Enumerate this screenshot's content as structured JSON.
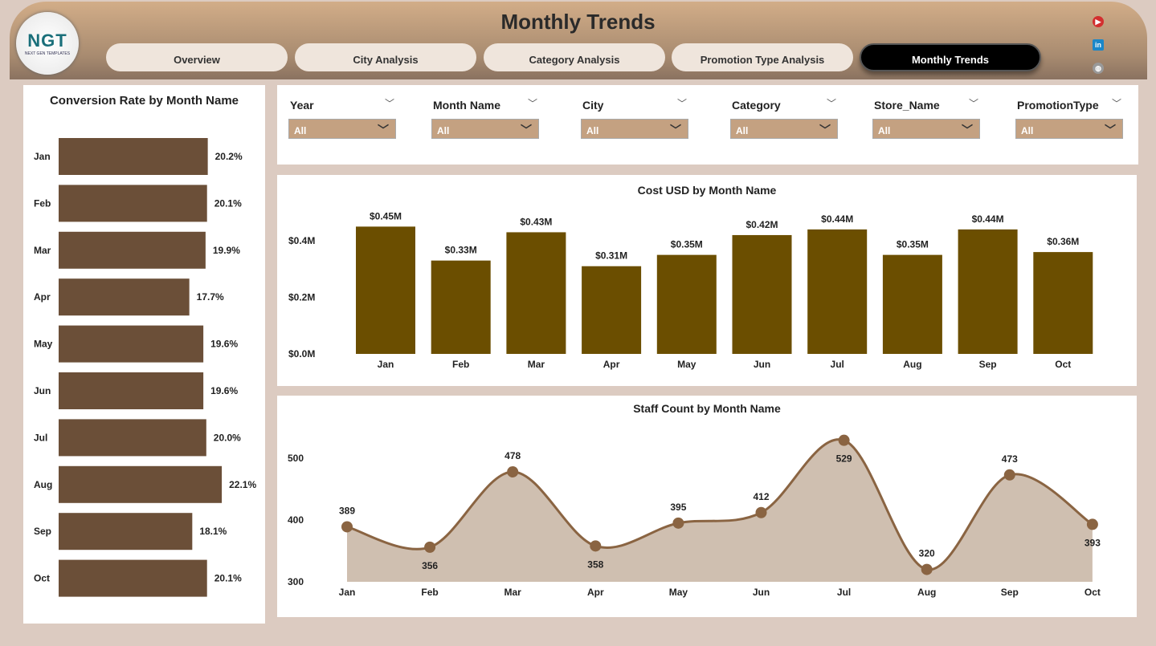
{
  "header": {
    "title": "Monthly Trends",
    "logo_text": "NGT",
    "logo_subtext": "NEXT GEN TEMPLATES",
    "tabs": [
      {
        "label": "Overview"
      },
      {
        "label": "City Analysis"
      },
      {
        "label": "Category Analysis"
      },
      {
        "label": "Promotion Type Analysis"
      },
      {
        "label": "Monthly Trends",
        "active": true
      }
    ],
    "social": [
      "youtube-icon",
      "linkedin-icon",
      "globe-icon"
    ]
  },
  "filters": [
    {
      "label": "Year",
      "value": "All"
    },
    {
      "label": "Month Name",
      "value": "All"
    },
    {
      "label": "City",
      "value": "All"
    },
    {
      "label": "Category",
      "value": "All"
    },
    {
      "label": "Store_Name",
      "value": "All"
    },
    {
      "label": "PromotionType",
      "value": "All"
    }
  ],
  "chart_data": [
    {
      "type": "bar",
      "orientation": "horizontal",
      "title": "Conversion Rate by Month Name",
      "color": "#6b4f38",
      "categories": [
        "Jan",
        "Feb",
        "Mar",
        "Apr",
        "May",
        "Jun",
        "Jul",
        "Aug",
        "Sep",
        "Oct"
      ],
      "values": [
        20.2,
        20.1,
        19.9,
        17.7,
        19.6,
        19.6,
        20.0,
        22.1,
        18.1,
        20.1
      ],
      "labels": [
        "20.2%",
        "20.1%",
        "19.9%",
        "17.7%",
        "19.6%",
        "19.6%",
        "20.0%",
        "22.1%",
        "18.1%",
        "20.1%"
      ]
    },
    {
      "type": "bar",
      "title": "Cost USD by Month Name",
      "color": "#6b4e00",
      "categories": [
        "Jan",
        "Feb",
        "Mar",
        "Apr",
        "May",
        "Jun",
        "Jul",
        "Aug",
        "Sep",
        "Oct"
      ],
      "values": [
        0.45,
        0.33,
        0.43,
        0.31,
        0.35,
        0.42,
        0.44,
        0.35,
        0.44,
        0.36
      ],
      "labels": [
        "$0.45M",
        "$0.33M",
        "$0.43M",
        "$0.31M",
        "$0.35M",
        "$0.42M",
        "$0.44M",
        "$0.35M",
        "$0.44M",
        "$0.36M"
      ],
      "yticks": [
        "$0.0M",
        "$0.2M",
        "$0.4M"
      ],
      "ytick_values": [
        0,
        0.2,
        0.4
      ]
    },
    {
      "type": "area",
      "title": "Staff Count by Month Name",
      "color": "#8a6442",
      "fill": "#cfbfb0",
      "categories": [
        "Jan",
        "Feb",
        "Mar",
        "Apr",
        "May",
        "Jun",
        "Jul",
        "Aug",
        "Sep",
        "Oct"
      ],
      "values": [
        389,
        356,
        478,
        358,
        395,
        412,
        529,
        320,
        473,
        393
      ],
      "label_pos": [
        "above",
        "below",
        "above",
        "below",
        "above",
        "above",
        "below",
        "above",
        "above",
        "below"
      ],
      "yticks": [
        "300",
        "400",
        "500"
      ],
      "ytick_values": [
        300,
        400,
        500
      ]
    }
  ]
}
